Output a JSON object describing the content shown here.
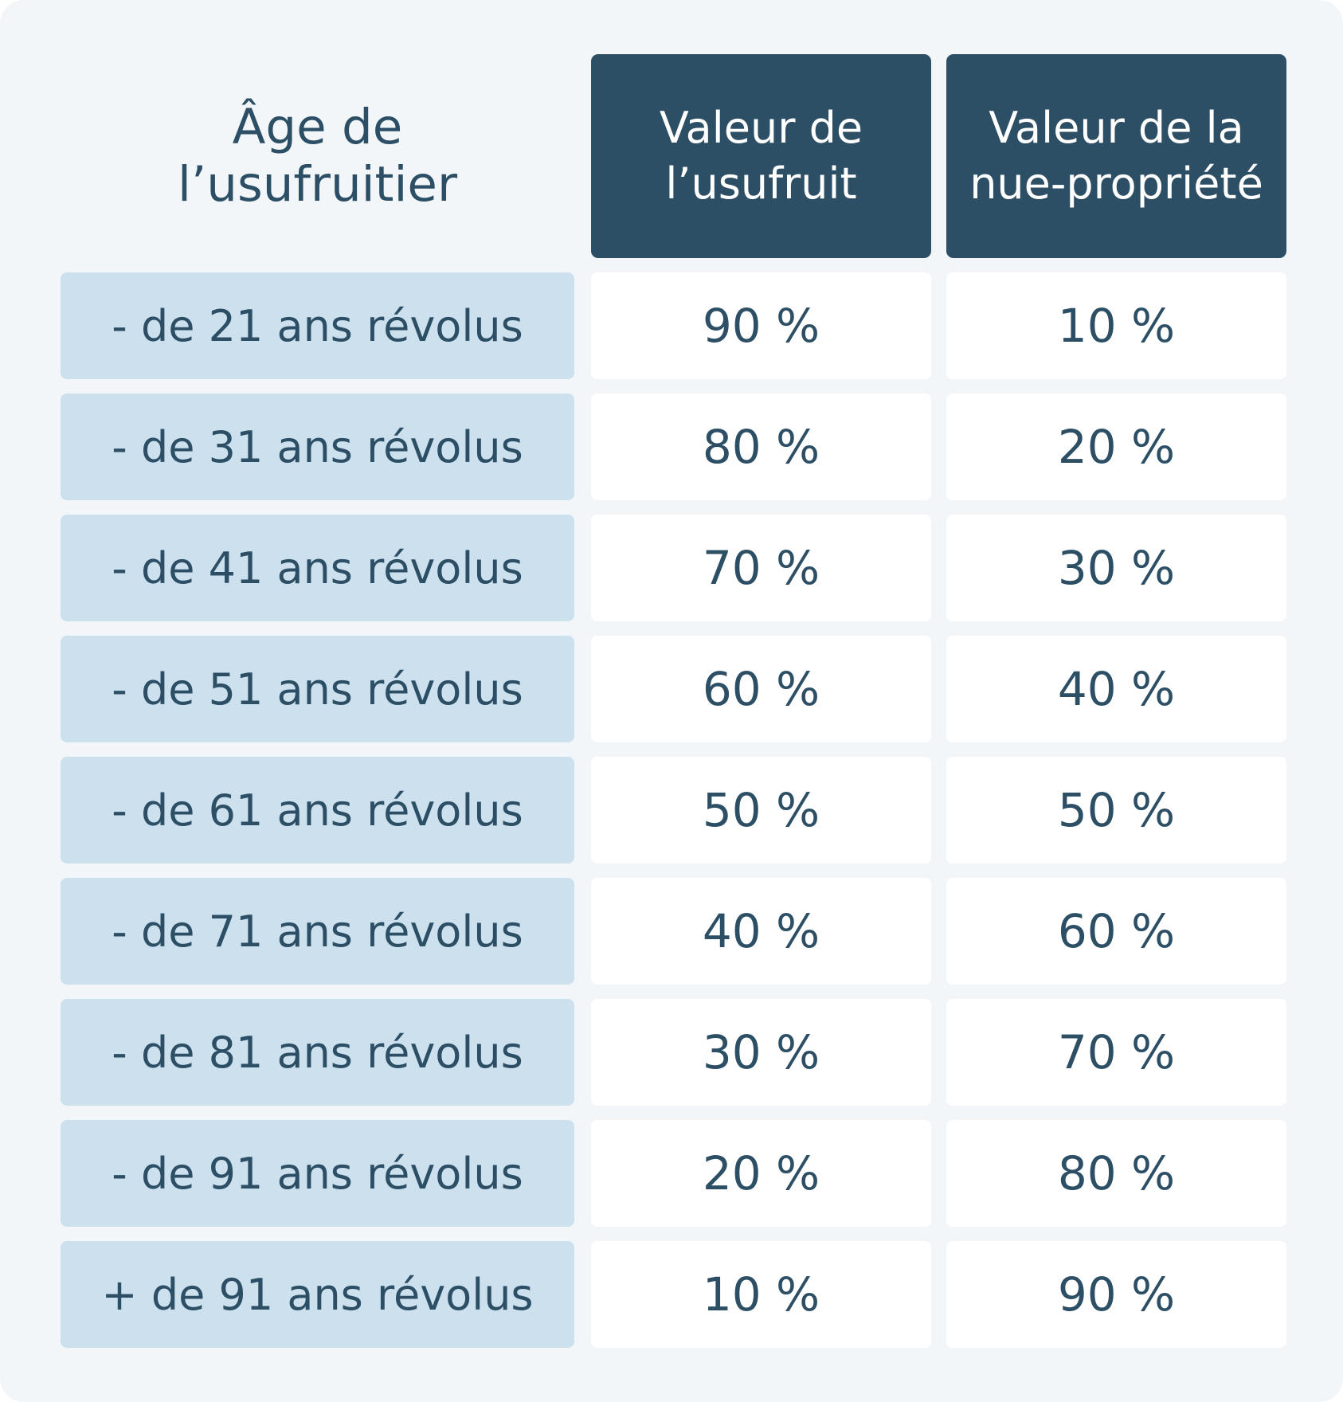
{
  "table": {
    "headers": {
      "age": "Âge de\nl’usufruitier",
      "usufruit": "Valeur de\nl’usufruit",
      "nue_propriete": "Valeur de la\nnue-propriété"
    },
    "rows": [
      {
        "age": "- de 21 ans révolus",
        "usufruit": "90 %",
        "nue_propriete": "10 %"
      },
      {
        "age": "- de 31 ans révolus",
        "usufruit": "80 %",
        "nue_propriete": "20 %"
      },
      {
        "age": "- de 41 ans révolus",
        "usufruit": "70 %",
        "nue_propriete": "30 %"
      },
      {
        "age": "- de 51 ans révolus",
        "usufruit": "60 %",
        "nue_propriete": "40 %"
      },
      {
        "age": "- de 61 ans révolus",
        "usufruit": "50 %",
        "nue_propriete": "50 %"
      },
      {
        "age": "- de 71 ans révolus",
        "usufruit": "40 %",
        "nue_propriete": "60 %"
      },
      {
        "age": "- de 81 ans révolus",
        "usufruit": "30 %",
        "nue_propriete": "70 %"
      },
      {
        "age": "- de 91 ans révolus",
        "usufruit": "20 %",
        "nue_propriete": "80 %"
      },
      {
        "age": "+ de 91 ans révolus",
        "usufruit": "10 %",
        "nue_propriete": "90 %"
      }
    ]
  },
  "colors": {
    "background": "#f3f6f8",
    "header_fill": "#2c4f66",
    "age_fill": "#cde0ee",
    "value_fill": "#ffffff",
    "text": "#2c4f66"
  }
}
